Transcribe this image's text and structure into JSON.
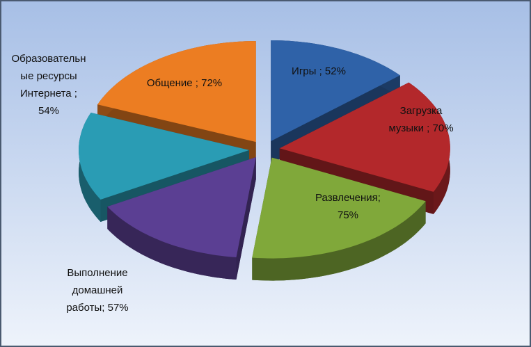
{
  "chart_data": {
    "type": "pie3d",
    "values": [
      52,
      70,
      75,
      57,
      54,
      72
    ],
    "value_labels": [
      [
        "Игры ; 52%"
      ],
      [
        "Загрузка",
        "музыки ; 70%"
      ],
      [
        "Развлечения;",
        "75%"
      ],
      [
        "Выполнение",
        "домашней",
        "работы; 57%"
      ],
      [
        "Образовательн",
        "ые ресурсы",
        "Интернета ;",
        "54%"
      ],
      [
        "Общение ; 72%"
      ]
    ],
    "colors": [
      "#2f62a8",
      "#b3282b",
      "#80a83a",
      "#5b3f93",
      "#2a9cb4",
      "#ec7d22"
    ]
  }
}
